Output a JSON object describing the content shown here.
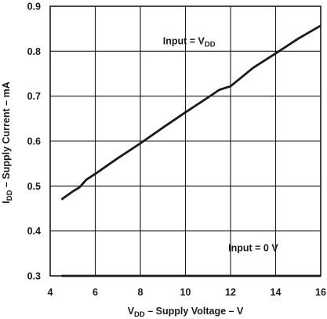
{
  "chart_data": {
    "type": "line",
    "title": "",
    "xlabel": {
      "main": "V",
      "sub": "DD",
      "rest": " – Supply Voltage – V"
    },
    "ylabel": {
      "main": "I",
      "sub": "DD",
      "rest": " – Supply Current – mA"
    },
    "xlim": [
      4,
      16
    ],
    "ylim": [
      0.3,
      0.9
    ],
    "xticks": [
      4,
      6,
      8,
      10,
      12,
      14,
      16
    ],
    "yticks": [
      0.3,
      0.4,
      0.5,
      0.6,
      0.7,
      0.8,
      0.9
    ],
    "xtick_labels": [
      "4",
      "6",
      "8",
      "10",
      "12",
      "14",
      "16"
    ],
    "ytick_labels": [
      "0.3",
      "0.4",
      "0.5",
      "0.6",
      "0.7",
      "0.8",
      "0.9"
    ],
    "grid": true,
    "series": [
      {
        "name": {
          "main": "Input = V",
          "sub": "DD"
        },
        "label_anchor": {
          "x": 9.0,
          "y": 0.815
        },
        "x": [
          4.5,
          5.0,
          5.3,
          5.6,
          6.0,
          7.0,
          8.0,
          9.0,
          10.0,
          11.0,
          11.5,
          12.0,
          13.0,
          14.0,
          15.0,
          16.0
        ],
        "y": [
          0.47,
          0.488,
          0.497,
          0.514,
          0.527,
          0.562,
          0.595,
          0.63,
          0.664,
          0.697,
          0.714,
          0.722,
          0.763,
          0.795,
          0.828,
          0.857
        ]
      },
      {
        "name": {
          "main": "Input = 0 V",
          "sub": ""
        },
        "label_anchor": {
          "x": 11.9,
          "y": 0.355
        },
        "x": [
          4.5,
          16.0
        ],
        "y": [
          0.3,
          0.3
        ]
      }
    ]
  },
  "colors": {
    "line": "#1a1a1a",
    "grid": "#1a1a1a",
    "background": "#ffffff"
  }
}
